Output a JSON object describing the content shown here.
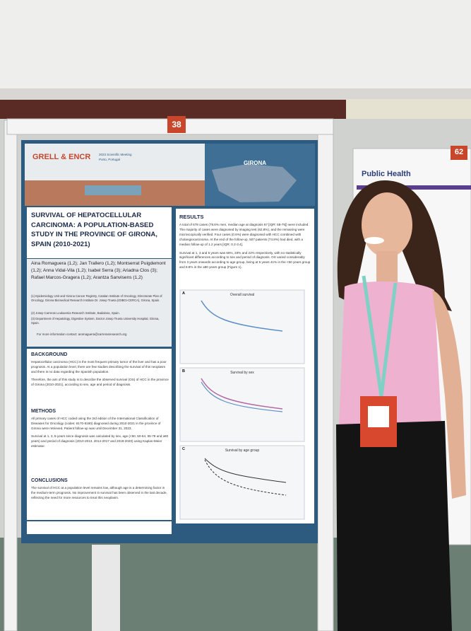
{
  "boards": {
    "left_number": "38",
    "right_number": "62"
  },
  "poster": {
    "header": {
      "logo": "GRELL & ENCR",
      "meeting": "2023 Scientific Meeting",
      "city": "Porto, Portugal",
      "map_label": "GIRONA"
    },
    "title": "SURVIVAL OF HEPATOCELLULAR CARCINOMA: A POPULATION-BASED STUDY IN THE PROVINCE OF GIRONA, SPAIN (2010-2021)",
    "authors": "Aina Romaguera (1,2); Jan Trallero (1,2); Montserrat Puigdemont (1,2); Anna Vidal-Vila (1,2); Isabel Serra (3); Ariadna Clos (3); Rafael Marcos-Gragera (1,2); Arantza Sanvisens (1,2)",
    "affiliations": [
      "(1) Epidemiology Unit and Girona Cancer Registry, Catalan Institute of Oncology, Directorate Plan of Oncology, Girona Biomedical Research Institute Dr. Josep Trueta (IDIBGI-CERCA), Girona, Spain.",
      "(2) Josep Carreras Leukaemia Research Institute, Badalona, Spain.",
      "(3) Department of Hepatology, Digestive System, Doctor Josep Trueta University Hospital, Girona, Spain."
    ],
    "contact": "For more information contact: aromaguera@carrerasresearch.org",
    "sections": [
      {
        "heading": "BACKGROUND",
        "text": [
          "Hepatocellular carcinoma (HCC) is the most frequent primary tumor of the liver and has a poor prognosis. At a population level, there are few studies describing the survival of this neoplasm and there is no data regarding the Spanish population.",
          "Therefore, the aim of this study is to describe the observed survival (OS) of HCC in the province of Girona (2010-2021), according to sex, age and period of diagnosis."
        ]
      },
      {
        "heading": "METHODS",
        "text": [
          "All primary cases of HCC coded using the 3rd edition of the International Classification of Diseases for Oncology (codes: 8170-8180) diagnosed during 2010-2021 in the province of Girona were retrieved. Patient follow-up was until December 31, 2023.",
          "Survival at 1, 3, 5-years since diagnosis was calculated by sex, age (<50, 50-64, 65-79 and ≥80 years) and period of diagnosis (2010-2013, 2014-2017 and 2018-2020) using Kaplan-Meier estimator."
        ]
      },
      {
        "heading": "CONCLUSIONS",
        "text": [
          "The survival of HCC at a population level remains low, although age is a determining factor in the medium-term prognosis. No improvement in survival has been observed in the last decade, reflecting the need for more resources to treat this neoplasm."
        ]
      }
    ],
    "results": {
      "heading": "RESULTS",
      "text": [
        "A total of 678 cases (78.6% men, median age at diagnosis 67 [IQR: 58-75]) were included. The majority of cases were diagnosed by imaging test (62.8%), and the remaining were microscopically verified. Four cases (0.6%) were diagnosed with HCC combined with cholangiocarcinoma. At the end of the follow-up, 507 patients (74.8%) had died, with a median follow-up of 1.2 years [IQR: 0.2-3.4].",
        "Survival at 1, 3 and 5 years was 55%, 33% and 22% respectively, with no statistically significant differences according to sex and period of diagnosis. OS varied considerably from 3 years onwards according to age group, being at 5 years 41% in the <50 years group and 8.8% in the ≥80 years group (Figure 1)."
      ]
    },
    "figures": [
      {
        "letter": "A",
        "title": "Overall survival"
      },
      {
        "letter": "B",
        "title": "Survival by sex"
      },
      {
        "letter": "C",
        "title": "Survival by age group"
      }
    ]
  },
  "side_poster": {
    "logo": "Public Health"
  }
}
